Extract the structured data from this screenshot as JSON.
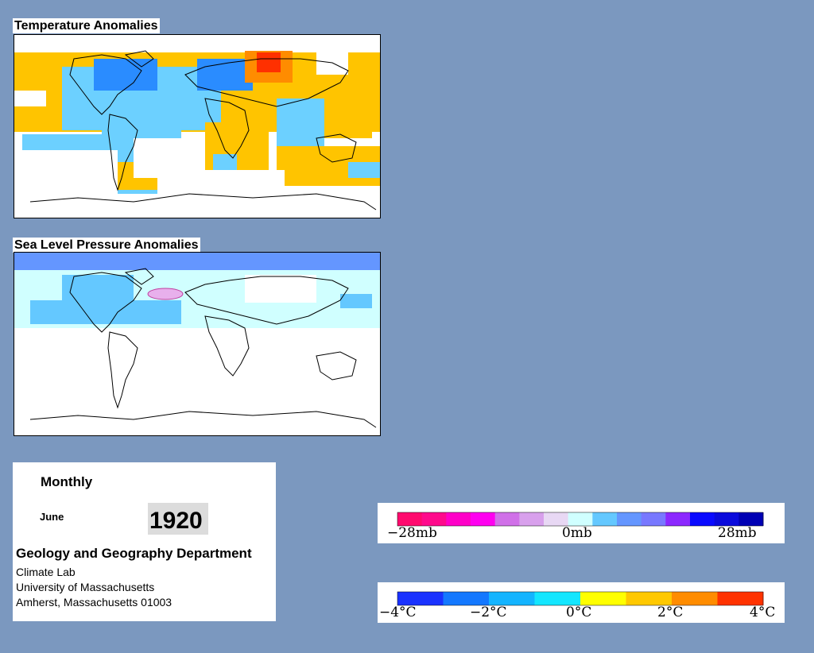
{
  "panels": {
    "temperature": {
      "title": "Temperature Anomalies"
    },
    "pressure": {
      "title": "Sea Level Pressure Anomalies"
    }
  },
  "info": {
    "period": "Monthly",
    "month": "June",
    "year": "1920",
    "department": "Geology and Geography Department",
    "lab": "Climate Lab",
    "university": "University of Massachusetts",
    "address": "Amherst, Massachusetts 01003"
  },
  "legends": {
    "pressure": {
      "labels": [
        "−28mb",
        "0mb",
        "28mb"
      ],
      "colors": [
        "#ff0a6e",
        "#ff0a8c",
        "#ff00c8",
        "#ff00f0",
        "#d070e8",
        "#d8a0ec",
        "#e8d8f4",
        "#d0ffff",
        "#64c8ff",
        "#6496ff",
        "#7878ff",
        "#8c28ff",
        "#0a0aff",
        "#0a0adc",
        "#0000b4"
      ]
    },
    "temperature": {
      "labels": [
        "−4°C",
        "−2°C",
        "0°C",
        "2°C",
        "4°C"
      ],
      "colors": [
        "#1a32ff",
        "#1478ff",
        "#14b4ff",
        "#14e6ff",
        "#ffff00",
        "#ffc800",
        "#ff8c00",
        "#ff3200"
      ]
    }
  }
}
